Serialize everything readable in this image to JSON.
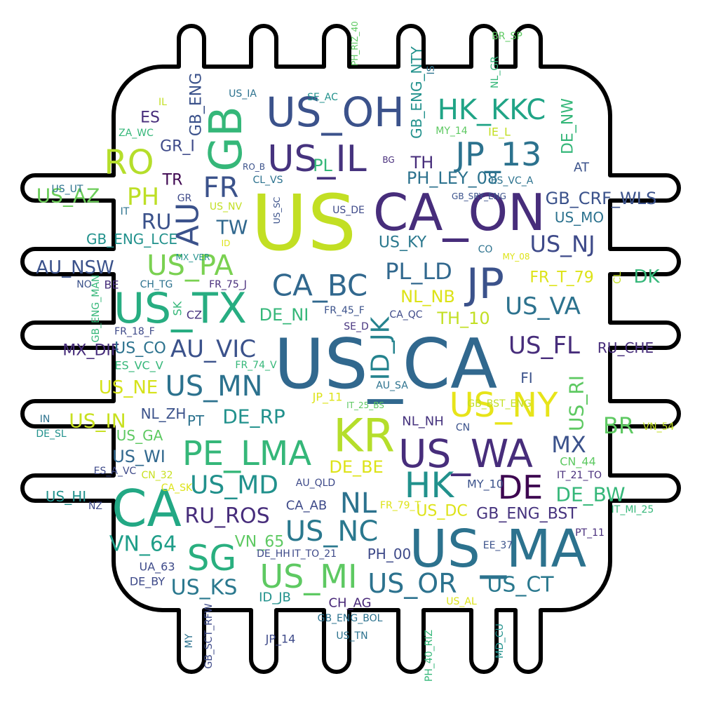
{
  "words": [
    {
      "text": "US",
      "color": "#c2df23"
    },
    {
      "text": "US_CA",
      "color": "#31688e"
    },
    {
      "text": "CA_ON",
      "color": "#472d7b"
    },
    {
      "text": "US_MA",
      "color": "#2c728e"
    },
    {
      "text": "US_OH",
      "color": "#3b528b"
    },
    {
      "text": "US_TX",
      "color": "#27ad81"
    },
    {
      "text": "KR",
      "color": "#b5de2b"
    },
    {
      "text": "JP",
      "color": "#3b528b"
    },
    {
      "text": "CA",
      "color": "#22a884"
    },
    {
      "text": "GB",
      "color": "#35b779"
    },
    {
      "text": "US_IL",
      "color": "#46337e"
    },
    {
      "text": "JP_13",
      "color": "#2c728e"
    },
    {
      "text": "US_WA",
      "color": "#472d7b"
    },
    {
      "text": "US_NY",
      "color": "#e7e419"
    },
    {
      "text": "PE_LMA",
      "color": "#35b779"
    },
    {
      "text": "HK_KKC",
      "color": "#20a486"
    },
    {
      "text": "RO",
      "color": "#b5de2b"
    },
    {
      "text": "HK",
      "color": "#21918c"
    },
    {
      "text": "DE",
      "color": "#3e0751"
    },
    {
      "text": "SG",
      "color": "#29af7f"
    },
    {
      "text": "CA_BC",
      "color": "#31688e"
    },
    {
      "text": "US_PA",
      "color": "#7ad151"
    },
    {
      "text": "AU",
      "color": "#3b528b"
    },
    {
      "text": "US_MN",
      "color": "#2c728e"
    },
    {
      "text": "US_MI",
      "color": "#5ec962"
    },
    {
      "text": "US_NC",
      "color": "#2a788e"
    },
    {
      "text": "US_OR",
      "color": "#2c728e"
    },
    {
      "text": "AU_VIC",
      "color": "#3b528b"
    },
    {
      "text": "ID_JK",
      "color": "#25838e"
    },
    {
      "text": "US_VA",
      "color": "#2c728e"
    },
    {
      "text": "US_FL",
      "color": "#472d7b"
    },
    {
      "text": "US_NJ",
      "color": "#3e4a89"
    },
    {
      "text": "US_MD",
      "color": "#21918c"
    },
    {
      "text": "PL_LD",
      "color": "#31688e"
    },
    {
      "text": "FR",
      "color": "#3b528b"
    },
    {
      "text": "PH",
      "color": "#bddf26"
    },
    {
      "text": "NL",
      "color": "#2c728e"
    },
    {
      "text": "BR",
      "color": "#5ec962"
    },
    {
      "text": "MX",
      "color": "#3b528b"
    },
    {
      "text": "RU_ROS",
      "color": "#472d7b"
    },
    {
      "text": "VN_64",
      "color": "#1f9e89"
    },
    {
      "text": "US_KS",
      "color": "#2a788e"
    },
    {
      "text": "US_CT",
      "color": "#2a788e"
    },
    {
      "text": "DE_BW",
      "color": "#35b779"
    },
    {
      "text": "DE_RP",
      "color": "#21918c"
    },
    {
      "text": "US_NE",
      "color": "#d5e21a"
    },
    {
      "text": "US_IN",
      "color": "#c8e020"
    },
    {
      "text": "US_WI",
      "color": "#31688e"
    },
    {
      "text": "US_AZ",
      "color": "#6ccd5a"
    },
    {
      "text": "AU_NSW",
      "color": "#3b528b"
    },
    {
      "text": "US_RI",
      "color": "#5ec962"
    },
    {
      "text": "PL",
      "color": "#35b779"
    },
    {
      "text": "TH",
      "color": "#472d7b"
    },
    {
      "text": "RU",
      "color": "#3b528b"
    },
    {
      "text": "TW",
      "color": "#31688e"
    },
    {
      "text": "DE_BE",
      "color": "#dde318"
    },
    {
      "text": "GB_CRF_WLS",
      "color": "#3b528b"
    },
    {
      "text": "PH_LEY_08",
      "color": "#2c728e"
    },
    {
      "text": "NL_NB",
      "color": "#dde318"
    },
    {
      "text": "TH_10",
      "color": "#c2df23"
    },
    {
      "text": "DE_NI",
      "color": "#35b779"
    },
    {
      "text": "US_KY",
      "color": "#2a788e"
    },
    {
      "text": "GB_ENG_BST",
      "color": "#46337e"
    },
    {
      "text": "US_DC",
      "color": "#dde318"
    },
    {
      "text": "PH_00",
      "color": "#3e4a89"
    },
    {
      "text": "VN_65",
      "color": "#5ec962"
    },
    {
      "text": "FR_T_79",
      "color": "#dde318"
    },
    {
      "text": "DK",
      "color": "#35b779"
    },
    {
      "text": "US_MO",
      "color": "#2c728e"
    },
    {
      "text": "ES",
      "color": "#472d7b"
    },
    {
      "text": "GB_ENG",
      "color": "#3b528b"
    },
    {
      "text": "GB_ENG_NTY",
      "color": "#21918c"
    },
    {
      "text": "GB_ENG_LCE",
      "color": "#21918c"
    },
    {
      "text": "MX_DIF",
      "color": "#472d7b"
    },
    {
      "text": "US_CO",
      "color": "#2c728e"
    },
    {
      "text": "FI",
      "color": "#3b528b"
    },
    {
      "text": "RU_CHE",
      "color": "#472d7b"
    },
    {
      "text": "DE_NW",
      "color": "#35b779"
    },
    {
      "text": "US_HI",
      "color": "#21918c"
    },
    {
      "text": "NL_ZH",
      "color": "#3b528b"
    },
    {
      "text": "PT",
      "color": "#2c728e"
    },
    {
      "text": "US_GA",
      "color": "#5ec962"
    },
    {
      "text": "NL_NH",
      "color": "#46337e"
    },
    {
      "text": "CA_AB",
      "color": "#3e4a89"
    },
    {
      "text": "ID_JB",
      "color": "#21918c"
    },
    {
      "text": "CH_AG",
      "color": "#482878"
    },
    {
      "text": "GR_I",
      "color": "#3e4a89"
    },
    {
      "text": "TR",
      "color": "#3e0751"
    },
    {
      "text": "AT",
      "color": "#3b528b"
    },
    {
      "text": "JP_11",
      "color": "#dde318"
    },
    {
      "text": "MY_10",
      "color": "#3b528b"
    },
    {
      "text": "UA_63",
      "color": "#3e4a89"
    },
    {
      "text": "DE_BY",
      "color": "#3e4a89"
    },
    {
      "text": "VN_54",
      "color": "#c2df23"
    },
    {
      "text": "CN_44",
      "color": "#5ec962"
    },
    {
      "text": "IT_21_TO",
      "color": "#472d7b"
    },
    {
      "text": "IT_MI_25",
      "color": "#35b779"
    },
    {
      "text": "ES_VC_V",
      "color": "#35b779"
    },
    {
      "text": "ES_VC_A",
      "color": "#2c728e"
    },
    {
      "text": "IE_L",
      "color": "#c2df23"
    },
    {
      "text": "CL",
      "color": "#c2df23"
    },
    {
      "text": "SK",
      "color": "#35b779"
    },
    {
      "text": "BE",
      "color": "#472d7b"
    },
    {
      "text": "CZ",
      "color": "#46337e"
    },
    {
      "text": "NO",
      "color": "#3b528b"
    },
    {
      "text": "CH_TG",
      "color": "#2c728e"
    },
    {
      "text": "FR_75_J",
      "color": "#472d7b"
    },
    {
      "text": "FR_45_F",
      "color": "#3b528b"
    },
    {
      "text": "CA_QC",
      "color": "#3e4a89"
    },
    {
      "text": "SE_D",
      "color": "#46337e"
    },
    {
      "text": "FR_18_F",
      "color": "#3e4a89"
    },
    {
      "text": "GB_ENG_MAN",
      "color": "#35b779"
    },
    {
      "text": "FR_74_V",
      "color": "#35b779"
    },
    {
      "text": "AU_SA",
      "color": "#2c728e"
    },
    {
      "text": "IT_25_BS",
      "color": "#5ec962"
    },
    {
      "text": "GB_BST_ENG",
      "color": "#c2df23"
    },
    {
      "text": "CN",
      "color": "#3b528b"
    },
    {
      "text": "IN",
      "color": "#2c728e"
    },
    {
      "text": "DE_SL",
      "color": "#21918c"
    },
    {
      "text": "ES_A_VC",
      "color": "#3e4a89"
    },
    {
      "text": "CN_32",
      "color": "#c8e020"
    },
    {
      "text": "CA_SK",
      "color": "#dde318"
    },
    {
      "text": "NZ",
      "color": "#3e4a89"
    },
    {
      "text": "AU_QLD",
      "color": "#3e4a89"
    },
    {
      "text": "FR_79_T",
      "color": "#dde318"
    },
    {
      "text": "DE_HH",
      "color": "#3e4a89"
    },
    {
      "text": "IT_TO_21",
      "color": "#3e4a89"
    },
    {
      "text": "EE_37",
      "color": "#3b528b"
    },
    {
      "text": "PT_11",
      "color": "#472d7b"
    },
    {
      "text": "US_AL",
      "color": "#dde318"
    },
    {
      "text": "GB_ENG_BOL",
      "color": "#2c728e"
    },
    {
      "text": "US_TN",
      "color": "#2c728e"
    },
    {
      "text": "JP_14",
      "color": "#3e4a89"
    },
    {
      "text": "MY",
      "color": "#2c728e"
    },
    {
      "text": "GB_SCT_RFW",
      "color": "#3e4a89"
    },
    {
      "text": "PH_40_RIZ",
      "color": "#35b779"
    },
    {
      "text": "MD_CU",
      "color": "#21918c"
    },
    {
      "text": "PH_RIZ_40",
      "color": "#5ec962"
    },
    {
      "text": "BR_SP",
      "color": "#5ec962"
    },
    {
      "text": "IS",
      "color": "#2c728e"
    },
    {
      "text": "NL_GR",
      "color": "#35b779"
    },
    {
      "text": "MY_14",
      "color": "#5ec962"
    },
    {
      "text": "US_IA",
      "color": "#2c728e"
    },
    {
      "text": "SE_AC",
      "color": "#21918c"
    },
    {
      "text": "IL",
      "color": "#c2df23"
    },
    {
      "text": "ZA_WC",
      "color": "#35b779"
    },
    {
      "text": "RO_B",
      "color": "#3b528b"
    },
    {
      "text": "BG",
      "color": "#472d7b"
    },
    {
      "text": "CL_VS",
      "color": "#2c728e"
    },
    {
      "text": "US_SC",
      "color": "#3b528b"
    },
    {
      "text": "GB_SRY_ENG",
      "color": "#3b528b"
    },
    {
      "text": "US_DE",
      "color": "#3e4a89"
    },
    {
      "text": "US_UT",
      "color": "#2c728e"
    },
    {
      "text": "IT",
      "color": "#2c728e"
    },
    {
      "text": "GR",
      "color": "#3e4a89"
    },
    {
      "text": "US_NV",
      "color": "#c2df23"
    },
    {
      "text": "ID",
      "color": "#dde318"
    },
    {
      "text": "MX_VER",
      "color": "#21918c"
    },
    {
      "text": "CO",
      "color": "#2c728e"
    },
    {
      "text": "MY_08",
      "color": "#dde318"
    },
    {
      "text": "SE",
      "color": "#dde318"
    }
  ]
}
